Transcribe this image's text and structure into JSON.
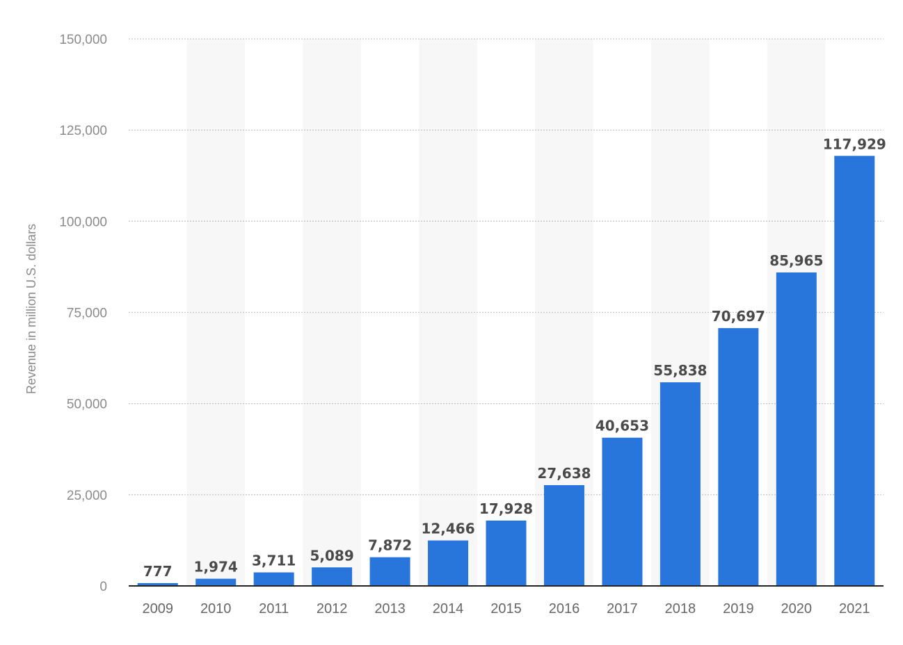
{
  "chart_data": {
    "type": "bar",
    "title": "",
    "xlabel": "",
    "ylabel": "Revenue in million U.S. dollars",
    "categories": [
      "2009",
      "2010",
      "2011",
      "2012",
      "2013",
      "2014",
      "2015",
      "2016",
      "2017",
      "2018",
      "2019",
      "2020",
      "2021"
    ],
    "values": [
      777,
      1974,
      3711,
      5089,
      7872,
      12466,
      17928,
      27638,
      40653,
      55838,
      70697,
      85965,
      117929
    ],
    "value_labels": [
      "777",
      "1,974",
      "3,711",
      "5,089",
      "7,872",
      "12,466",
      "17,928",
      "27,638",
      "40,653",
      "55,838",
      "70,697",
      "85,965",
      "117,929"
    ],
    "ylim": [
      0,
      150000
    ],
    "yticks": [
      0,
      25000,
      50000,
      75000,
      100000,
      125000,
      150000
    ],
    "ytick_labels": [
      "0",
      "25,000",
      "50,000",
      "75,000",
      "100,000",
      "125,000",
      "150,000"
    ],
    "grid": true,
    "alternating_column_bands": true,
    "bar_color": "#2875dc",
    "band_color": "#f7f7f8"
  }
}
